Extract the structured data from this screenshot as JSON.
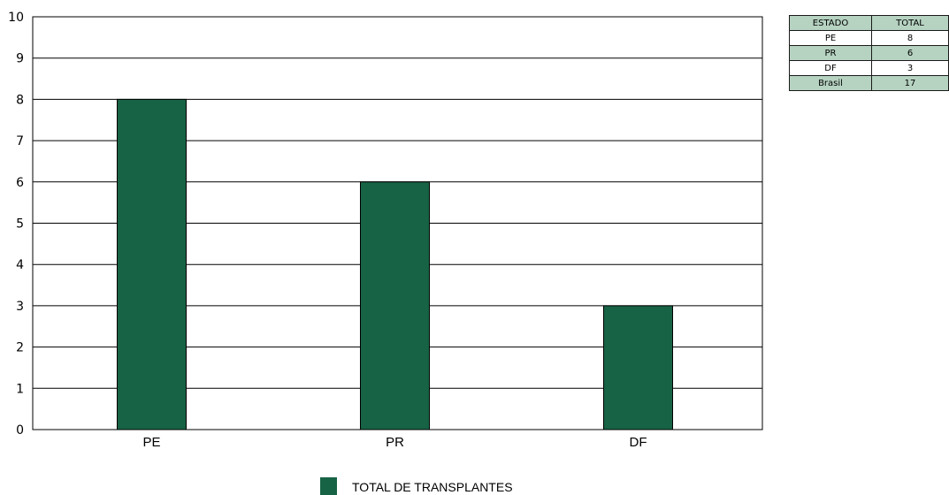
{
  "chart_data": {
    "type": "bar",
    "title": "",
    "xlabel": "",
    "ylabel": "",
    "categories": [
      "PE",
      "PR",
      "DF"
    ],
    "series": [
      {
        "name": "TOTAL DE TRANSPLANTES",
        "values": [
          8,
          6,
          3
        ],
        "color": "#176345"
      }
    ],
    "ylim": [
      0,
      10
    ],
    "yticks": [
      "0",
      "1",
      "2",
      "3",
      "4",
      "5",
      "6",
      "7",
      "8",
      "9",
      "10"
    ],
    "grid": true,
    "legend_position": "bottom"
  },
  "table": {
    "headers": {
      "estado": "ESTADO",
      "total": "TOTAL"
    },
    "rows": [
      {
        "estado": "PE",
        "total": "8"
      },
      {
        "estado": "PR",
        "total": "6"
      },
      {
        "estado": "DF",
        "total": "3"
      },
      {
        "estado": "Brasil",
        "total": "17"
      }
    ],
    "shade_color": "#b6d3c1"
  }
}
